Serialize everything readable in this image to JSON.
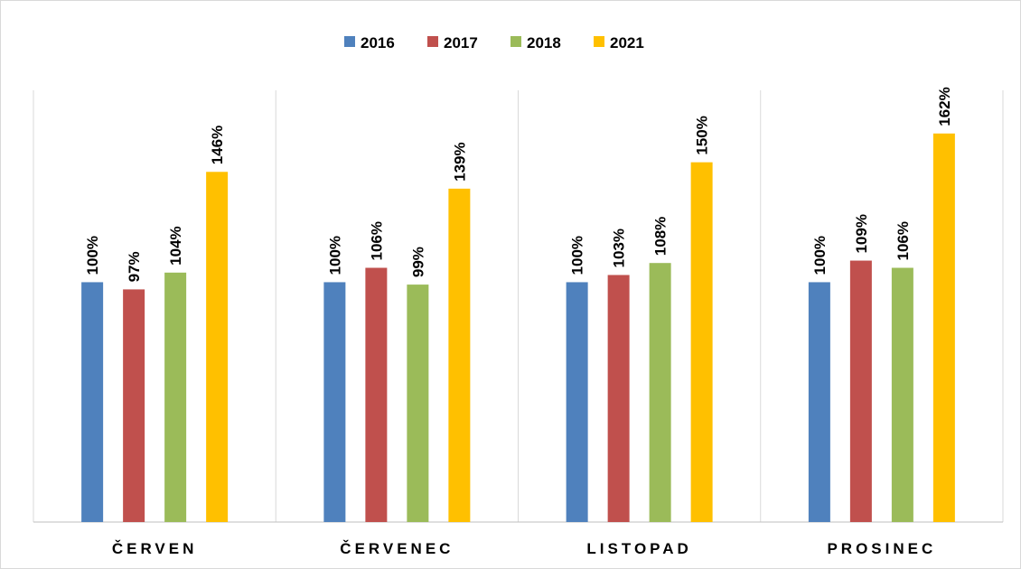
{
  "chart_data": {
    "type": "bar",
    "categories": [
      "ČERVEN",
      "ČERVENEC",
      "LISTOPAD",
      "PROSINEC"
    ],
    "series": [
      {
        "name": "2016",
        "color": "#4f81bd",
        "values": [
          100,
          100,
          100,
          100
        ],
        "value_labels": [
          "100%",
          "100%",
          "100%",
          "100%"
        ]
      },
      {
        "name": "2017",
        "color": "#c0504d",
        "values": [
          97,
          106,
          103,
          109
        ],
        "value_labels": [
          "97%",
          "106%",
          "103%",
          "109%"
        ]
      },
      {
        "name": "2018",
        "color": "#9bbb59",
        "values": [
          104,
          99,
          108,
          106
        ],
        "value_labels": [
          "104%",
          "99%",
          "108%",
          "106%"
        ]
      },
      {
        "name": "2021",
        "color": "#ffc000",
        "values": [
          146,
          139,
          150,
          162
        ],
        "value_labels": [
          "146%",
          "139%",
          "150%",
          "162%"
        ]
      }
    ],
    "ylim": [
      0,
      180
    ],
    "legend": "top"
  }
}
